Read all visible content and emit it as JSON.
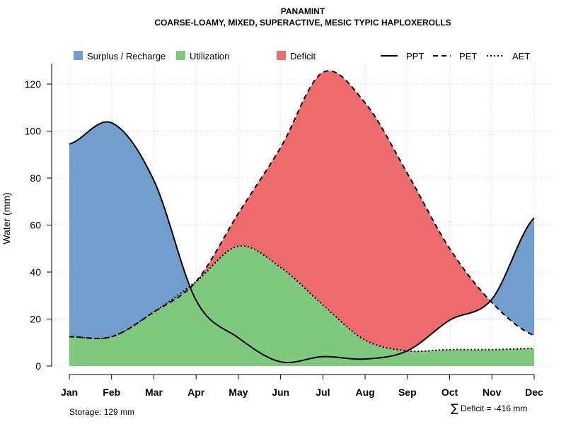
{
  "chart_data": {
    "type": "area",
    "title": "PANAMINT",
    "subtitle": "COARSE-LOAMY, MIXED, SUPERACTIVE, MESIC TYPIC HAPLOXEROLLS",
    "xlabel": "",
    "ylabel": "Water (mm)",
    "ylim": [
      0,
      129
    ],
    "yticks": [
      0,
      20,
      40,
      60,
      80,
      100,
      120
    ],
    "grid": true,
    "categories": [
      "Jan",
      "Feb",
      "Mar",
      "Apr",
      "May",
      "Jun",
      "Jul",
      "Aug",
      "Sep",
      "Oct",
      "Nov",
      "Dec"
    ],
    "series": [
      {
        "name": "PPT",
        "style": "solid",
        "values": [
          94.5,
          103.5,
          79,
          28,
          12,
          1.8,
          4,
          3,
          6.5,
          19.5,
          28.5,
          63
        ]
      },
      {
        "name": "PET",
        "style": "dashed",
        "values": [
          12.5,
          12.5,
          23,
          36,
          65,
          93,
          125,
          112,
          82,
          50,
          27,
          13
        ]
      },
      {
        "name": "AET",
        "style": "dotted",
        "values": [
          12.5,
          12.5,
          23,
          36,
          51,
          42,
          26,
          11,
          6.5,
          7,
          7,
          7.5
        ]
      }
    ],
    "fills": [
      {
        "name": "Surplus / Recharge",
        "color": "#729ECE"
      },
      {
        "name": "Utilization",
        "color": "#7FC97F"
      },
      {
        "name": "Deficit",
        "color": "#ED6B6D"
      }
    ],
    "legend": {
      "position": "top",
      "fill_entries": [
        "Surplus / Recharge",
        "Utilization",
        "Deficit"
      ],
      "line_entries": [
        "PPT",
        "PET",
        "AET"
      ]
    },
    "annotations": {
      "storage": "Storage: 129 mm",
      "deficit_symbol": "∑",
      "deficit": "Deficit = -416 mm"
    }
  }
}
